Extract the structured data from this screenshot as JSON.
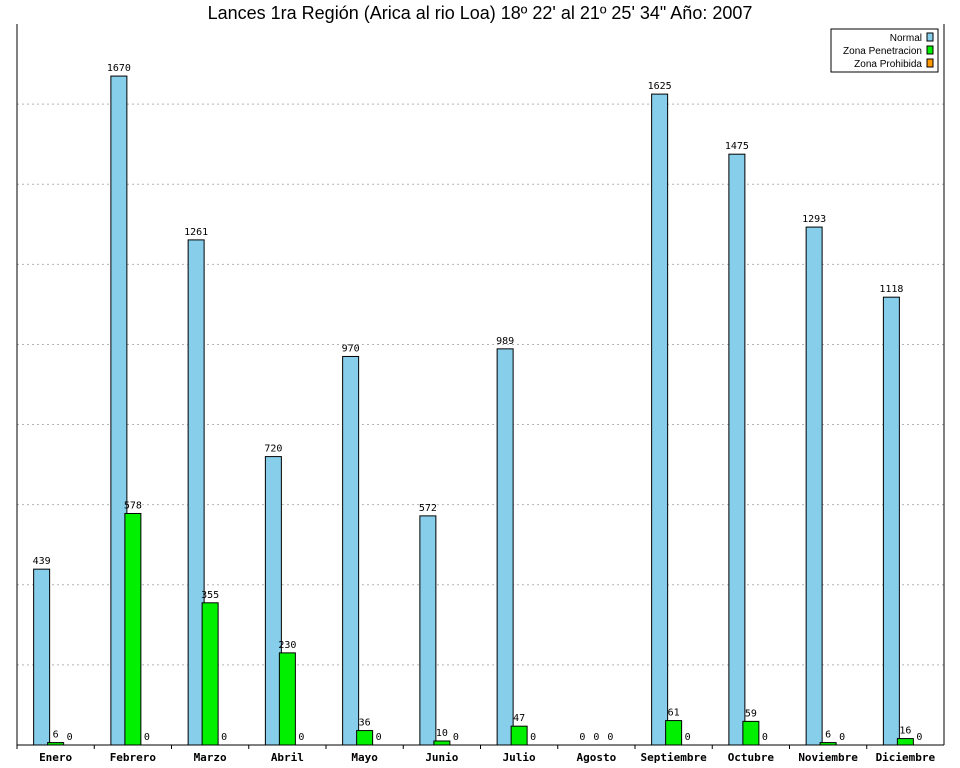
{
  "chart_data": {
    "type": "bar",
    "title": "Lances 1ra Región (Arica al rio Loa) 18º 22' al 21º 25' 34\" Año: 2007",
    "xlabel": "",
    "ylabel": "",
    "categories": [
      "Enero",
      "Febrero",
      "Marzo",
      "Abril",
      "Mayo",
      "Junio",
      "Julio",
      "Agosto",
      "Septiembre",
      "Octubre",
      "Noviembre",
      "Diciembre"
    ],
    "series": [
      {
        "name": "Normal",
        "color": "#87CEEB",
        "values": [
          439,
          1670,
          1261,
          720,
          970,
          572,
          989,
          0,
          1625,
          1475,
          1293,
          1118
        ]
      },
      {
        "name": "Zona Penetracion",
        "color": "#00F000",
        "values": [
          6,
          578,
          355,
          230,
          36,
          10,
          47,
          0,
          61,
          59,
          6,
          16
        ]
      },
      {
        "name": "Zona Prohibida",
        "color": "#FF9900",
        "values": [
          0,
          0,
          0,
          0,
          0,
          0,
          0,
          0,
          0,
          0,
          0,
          0
        ]
      }
    ],
    "ylim": [
      0,
      1800
    ],
    "grid": true,
    "legend_position": "top-right"
  }
}
